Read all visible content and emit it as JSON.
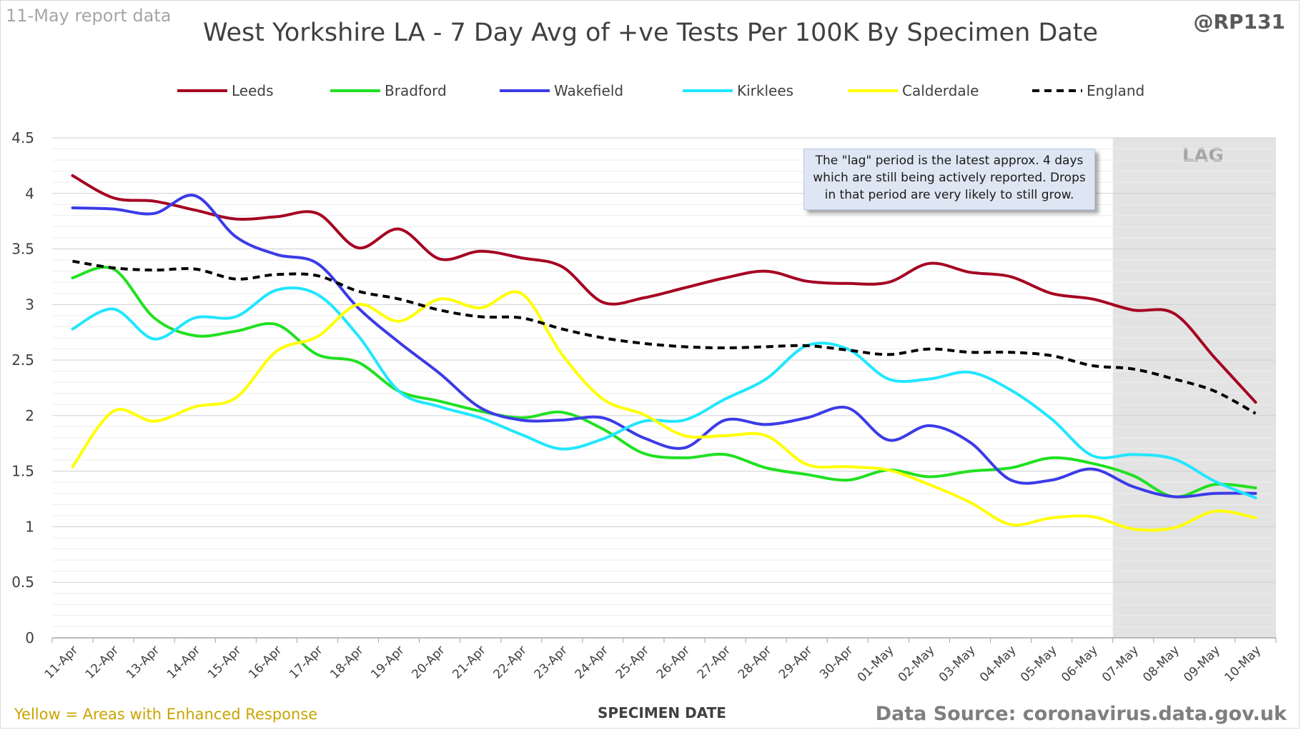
{
  "header": {
    "report_date": "11-May report data",
    "title": "West Yorkshire LA - 7 Day Avg of +ve Tests Per 100K By Specimen Date",
    "handle": "@RP131"
  },
  "footer": {
    "footnote": "Yellow = Areas with Enhanced Response",
    "source": "Data Source: coronavirus.data.gov.uk"
  },
  "annotation": {
    "lag_label": "LAG",
    "lag_text": "The \"lag\" period is the latest approx. 4 days which are still being actively reported. Drops in that period are very likely to still grow."
  },
  "chart_data": {
    "type": "line",
    "title": "West Yorkshire LA - 7 Day Avg of +ve Tests Per 100K By Specimen Date",
    "xlabel": "SPECIMEN DATE",
    "ylabel": "",
    "ylim": [
      0,
      4.5
    ],
    "yticks": [
      "0",
      "0.5",
      "1",
      "1.5",
      "2",
      "2.5",
      "3",
      "3.5",
      "4",
      "4.5"
    ],
    "grid": true,
    "legend_position": "top",
    "lag_region": [
      "07-May",
      "10-May"
    ],
    "categories": [
      "11-Apr",
      "12-Apr",
      "13-Apr",
      "14-Apr",
      "15-Apr",
      "16-Apr",
      "17-Apr",
      "18-Apr",
      "19-Apr",
      "20-Apr",
      "21-Apr",
      "22-Apr",
      "23-Apr",
      "24-Apr",
      "25-Apr",
      "26-Apr",
      "27-Apr",
      "28-Apr",
      "29-Apr",
      "30-Apr",
      "01-May",
      "02-May",
      "03-May",
      "04-May",
      "05-May",
      "06-May",
      "07-May",
      "08-May",
      "09-May",
      "10-May"
    ],
    "series": [
      {
        "name": "Leeds",
        "color": "#a50021",
        "dashed": false,
        "values": [
          4.16,
          3.96,
          3.93,
          3.85,
          3.77,
          3.79,
          3.82,
          3.51,
          3.68,
          3.41,
          3.48,
          3.42,
          3.34,
          3.02,
          3.06,
          3.15,
          3.24,
          3.3,
          3.21,
          3.19,
          3.2,
          3.37,
          3.29,
          3.25,
          3.1,
          3.05,
          2.95,
          2.92,
          2.52,
          2.12
        ]
      },
      {
        "name": "Bradford",
        "color": "#21e021",
        "dashed": false,
        "values": [
          3.24,
          3.32,
          2.88,
          2.72,
          2.76,
          2.82,
          2.55,
          2.48,
          2.22,
          2.13,
          2.04,
          1.98,
          2.03,
          1.88,
          1.66,
          1.62,
          1.65,
          1.53,
          1.47,
          1.42,
          1.51,
          1.45,
          1.5,
          1.53,
          1.62,
          1.57,
          1.46,
          1.27,
          1.38,
          1.35
        ]
      },
      {
        "name": "Wakefield",
        "color": "#3b3be8",
        "dashed": false,
        "values": [
          3.87,
          3.86,
          3.82,
          3.98,
          3.61,
          3.45,
          3.37,
          2.97,
          2.66,
          2.38,
          2.07,
          1.96,
          1.96,
          1.98,
          1.8,
          1.71,
          1.96,
          1.92,
          1.98,
          2.07,
          1.78,
          1.91,
          1.76,
          1.42,
          1.42,
          1.52,
          1.36,
          1.27,
          1.3,
          1.3
        ]
      },
      {
        "name": "Kirklees",
        "color": "#21e6ff",
        "dashed": false,
        "values": [
          2.78,
          2.96,
          2.69,
          2.88,
          2.89,
          3.13,
          3.09,
          2.72,
          2.22,
          2.08,
          1.98,
          1.83,
          1.7,
          1.79,
          1.95,
          1.96,
          2.15,
          2.33,
          2.63,
          2.6,
          2.33,
          2.33,
          2.39,
          2.23,
          1.97,
          1.64,
          1.65,
          1.61,
          1.41,
          1.26
        ]
      },
      {
        "name": "Calderdale",
        "color": "#ffff00",
        "dashed": false,
        "values": [
          1.54,
          2.04,
          1.95,
          2.08,
          2.16,
          2.58,
          2.71,
          3.0,
          2.85,
          3.05,
          2.97,
          3.1,
          2.55,
          2.15,
          2.01,
          1.82,
          1.82,
          1.82,
          1.56,
          1.54,
          1.51,
          1.38,
          1.22,
          1.02,
          1.08,
          1.09,
          0.98,
          0.99,
          1.14,
          1.08
        ]
      },
      {
        "name": "England",
        "color": "#000000",
        "dashed": true,
        "values": [
          3.39,
          3.33,
          3.31,
          3.32,
          3.23,
          3.27,
          3.26,
          3.12,
          3.05,
          2.95,
          2.89,
          2.88,
          2.78,
          2.7,
          2.65,
          2.62,
          2.61,
          2.62,
          2.63,
          2.59,
          2.55,
          2.6,
          2.57,
          2.57,
          2.54,
          2.45,
          2.42,
          2.33,
          2.22,
          2.02
        ]
      }
    ]
  }
}
